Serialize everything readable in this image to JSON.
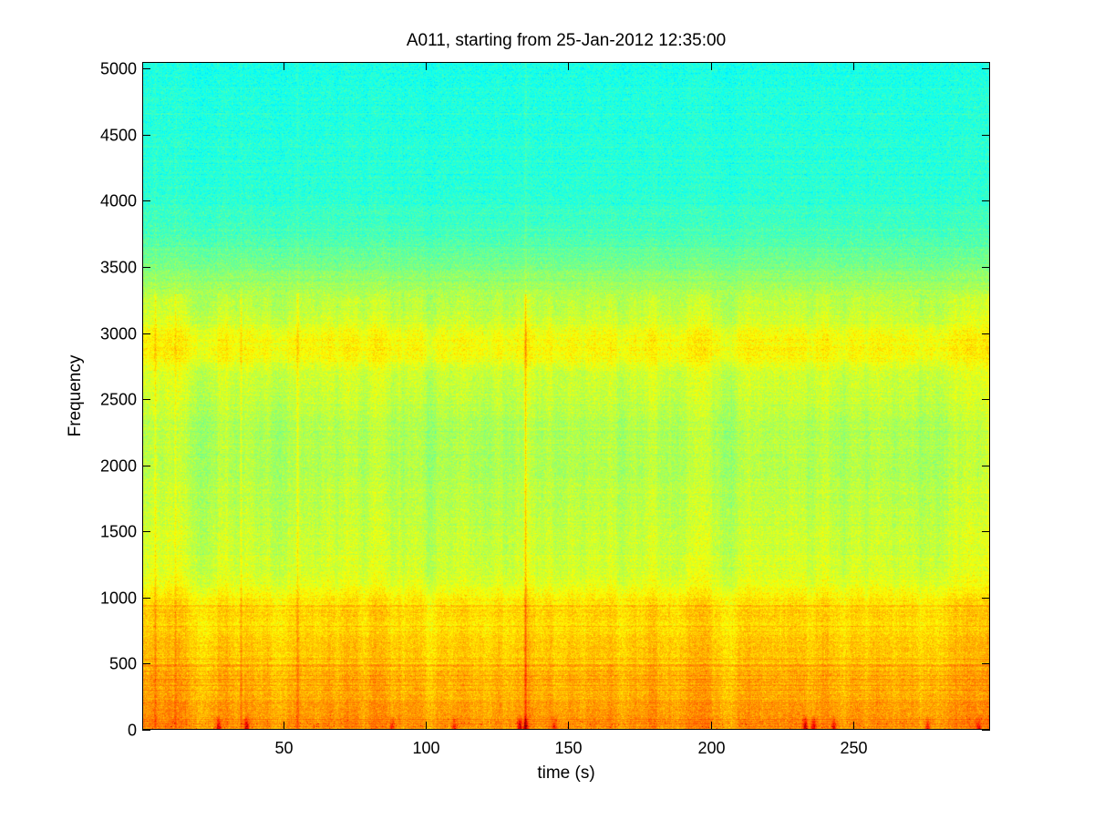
{
  "chart_data": {
    "type": "heatmap",
    "title": "A011, starting from 25-Jan-2012 12:35:00",
    "xlabel": "time (s)",
    "ylabel": "Frequency",
    "xlim": [
      0.5,
      298
    ],
    "ylim": [
      0,
      5050
    ],
    "xticks": [
      50,
      100,
      150,
      200,
      250
    ],
    "yticks": [
      0,
      500,
      1000,
      1500,
      2000,
      2500,
      3000,
      3500,
      4000,
      4500,
      5000
    ],
    "colormap": "jet",
    "grid": false,
    "frequency_bands": [
      {
        "freq": 5000,
        "level": 0.4
      },
      {
        "freq": 4500,
        "level": 0.41
      },
      {
        "freq": 4000,
        "level": 0.42
      },
      {
        "freq": 3700,
        "level": 0.45
      },
      {
        "freq": 3500,
        "level": 0.5
      },
      {
        "freq": 3300,
        "level": 0.55
      },
      {
        "freq": 3100,
        "level": 0.58
      },
      {
        "freq": 2950,
        "level": 0.63
      },
      {
        "freq": 2850,
        "level": 0.63
      },
      {
        "freq": 2700,
        "level": 0.58
      },
      {
        "freq": 2500,
        "level": 0.57
      },
      {
        "freq": 2300,
        "level": 0.55
      },
      {
        "freq": 2000,
        "level": 0.55
      },
      {
        "freq": 1800,
        "level": 0.56
      },
      {
        "freq": 1500,
        "level": 0.57
      },
      {
        "freq": 1250,
        "level": 0.58
      },
      {
        "freq": 1100,
        "level": 0.6
      },
      {
        "freq": 1000,
        "level": 0.64
      },
      {
        "freq": 900,
        "level": 0.67
      },
      {
        "freq": 800,
        "level": 0.66
      },
      {
        "freq": 650,
        "level": 0.68
      },
      {
        "freq": 500,
        "level": 0.68
      },
      {
        "freq": 400,
        "level": 0.7
      },
      {
        "freq": 300,
        "level": 0.7
      },
      {
        "freq": 200,
        "level": 0.72
      },
      {
        "freq": 100,
        "level": 0.73
      },
      {
        "freq": 50,
        "level": 0.73
      },
      {
        "freq": 0,
        "level": 0.72
      }
    ],
    "vertical_streaks": [
      {
        "time": 5,
        "strength": 0.05
      },
      {
        "time": 12,
        "strength": 0.05
      },
      {
        "time": 35,
        "strength": 0.06
      },
      {
        "time": 55,
        "strength": 0.06
      },
      {
        "time": 135,
        "strength": 0.1
      }
    ],
    "transient_bursts": [
      {
        "time": 27,
        "strength": 0.8
      },
      {
        "time": 37,
        "strength": 0.9
      },
      {
        "time": 88,
        "strength": 0.6
      },
      {
        "time": 110,
        "strength": 0.6
      },
      {
        "time": 133,
        "strength": 1.0
      },
      {
        "time": 135,
        "strength": 1.0
      },
      {
        "time": 145,
        "strength": 0.6
      },
      {
        "time": 233,
        "strength": 1.0
      },
      {
        "time": 236,
        "strength": 0.9
      },
      {
        "time": 243,
        "strength": 0.8
      },
      {
        "time": 276,
        "strength": 0.6
      },
      {
        "time": 294,
        "strength": 0.6
      }
    ]
  }
}
